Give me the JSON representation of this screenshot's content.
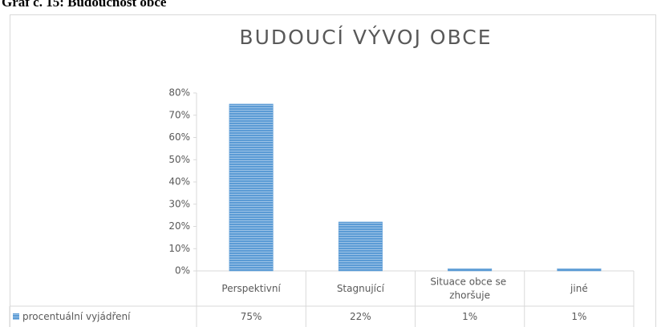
{
  "caption": "Graf č. 15: Budoucnost obce",
  "chart_data": {
    "type": "bar",
    "title": "BUDOUCÍ VÝVOJ OBCE",
    "categories": [
      "Perspektivní",
      "Stagnující",
      "Situace obce se zhoršuje",
      "jiné"
    ],
    "series": [
      {
        "name": "procentuální vyjádření",
        "color": "#5b9bd5",
        "values": [
          75,
          22,
          1,
          1
        ],
        "value_labels": [
          "75%",
          "22%",
          "1%",
          "1%"
        ]
      }
    ],
    "ylim": [
      0,
      80
    ],
    "yticks": [
      {
        "value": 0,
        "label": "0%"
      },
      {
        "value": 10,
        "label": "10%"
      },
      {
        "value": 20,
        "label": "20%"
      },
      {
        "value": 30,
        "label": "30%"
      },
      {
        "value": 40,
        "label": "40%"
      },
      {
        "value": 50,
        "label": "50%"
      },
      {
        "value": 60,
        "label": "60%"
      },
      {
        "value": 70,
        "label": "70%"
      },
      {
        "value": 80,
        "label": "80%"
      }
    ],
    "data_table": true
  }
}
